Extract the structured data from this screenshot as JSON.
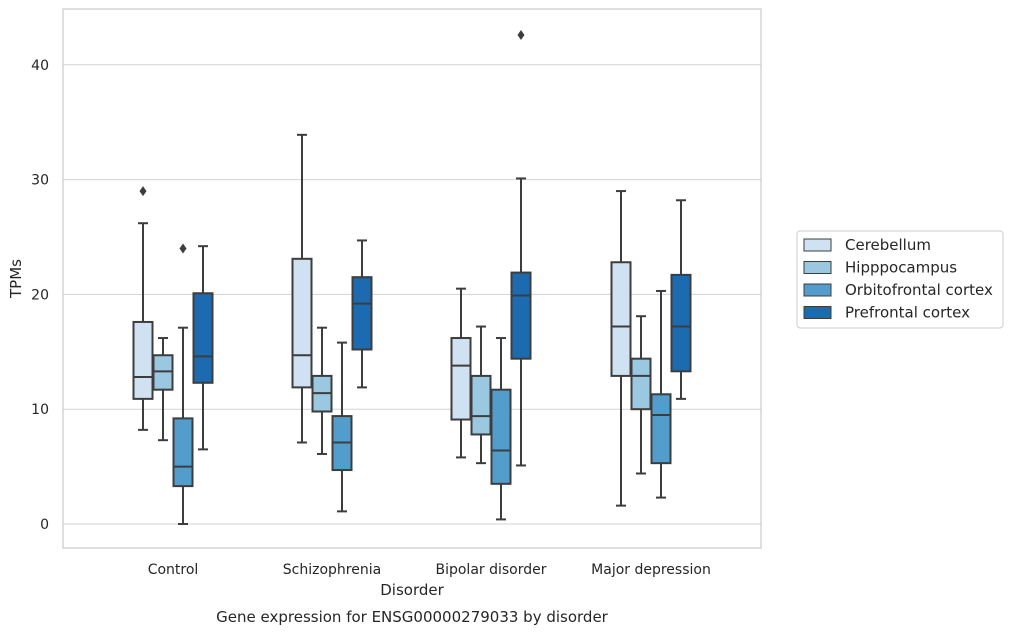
{
  "chart_data": {
    "type": "boxplot",
    "title": "",
    "caption": "Gene expression for ENSG00000279033 by disorder",
    "xlabel": "Disorder",
    "ylabel": "TPMs",
    "ylim": [
      -2,
      45
    ],
    "yticks": [
      0,
      10,
      20,
      30,
      40
    ],
    "grid": "horizontal",
    "legend_position": "right",
    "categories": [
      "Control",
      "Schizophrenia",
      "Bipolar disorder",
      "Major depression"
    ],
    "series": [
      {
        "name": "Cerebellum",
        "color": "#d0e2f2",
        "boxes": [
          {
            "whislo": 8.2,
            "q1": 10.9,
            "med": 12.8,
            "q3": 17.6,
            "whishi": 26.2,
            "fliers": [
              29.0
            ]
          },
          {
            "whislo": 7.1,
            "q1": 11.9,
            "med": 14.7,
            "q3": 23.1,
            "whishi": 33.9,
            "fliers": []
          },
          {
            "whislo": 5.8,
            "q1": 9.1,
            "med": 13.8,
            "q3": 16.2,
            "whishi": 20.5,
            "fliers": []
          },
          {
            "whislo": 1.6,
            "q1": 12.9,
            "med": 17.2,
            "q3": 22.8,
            "whishi": 29.0,
            "fliers": []
          }
        ]
      },
      {
        "name": "Hipppocampus",
        "color": "#9ac8e0",
        "boxes": [
          {
            "whislo": 7.3,
            "q1": 11.7,
            "med": 13.3,
            "q3": 14.7,
            "whishi": 16.2,
            "fliers": []
          },
          {
            "whislo": 6.1,
            "q1": 9.8,
            "med": 11.4,
            "q3": 12.9,
            "whishi": 17.1,
            "fliers": []
          },
          {
            "whislo": 5.3,
            "q1": 7.8,
            "med": 9.4,
            "q3": 12.9,
            "whishi": 17.2,
            "fliers": []
          },
          {
            "whislo": 4.4,
            "q1": 10.0,
            "med": 12.9,
            "q3": 14.4,
            "whishi": 18.1,
            "fliers": []
          }
        ]
      },
      {
        "name": "Orbitofrontal cortex",
        "color": "#529dcc",
        "boxes": [
          {
            "whislo": 0.0,
            "q1": 3.3,
            "med": 5.0,
            "q3": 9.2,
            "whishi": 17.1,
            "fliers": [
              24.0
            ]
          },
          {
            "whislo": 1.1,
            "q1": 4.7,
            "med": 7.1,
            "q3": 9.4,
            "whishi": 15.8,
            "fliers": []
          },
          {
            "whislo": 0.4,
            "q1": 3.5,
            "med": 6.4,
            "q3": 11.7,
            "whishi": 16.2,
            "fliers": []
          },
          {
            "whislo": 2.3,
            "q1": 5.3,
            "med": 9.5,
            "q3": 11.3,
            "whishi": 20.3,
            "fliers": []
          }
        ]
      },
      {
        "name": "Prefrontal cortex",
        "color": "#1c6aaf",
        "boxes": [
          {
            "whislo": 6.5,
            "q1": 12.3,
            "med": 14.6,
            "q3": 20.1,
            "whishi": 24.2,
            "fliers": []
          },
          {
            "whislo": 11.9,
            "q1": 15.2,
            "med": 19.2,
            "q3": 21.5,
            "whishi": 24.7,
            "fliers": []
          },
          {
            "whislo": 5.1,
            "q1": 14.4,
            "med": 19.9,
            "q3": 21.9,
            "whishi": 30.1,
            "fliers": [
              42.6
            ]
          },
          {
            "whislo": 10.9,
            "q1": 13.3,
            "med": 17.2,
            "q3": 21.7,
            "whishi": 28.2,
            "fliers": []
          }
        ]
      }
    ]
  }
}
